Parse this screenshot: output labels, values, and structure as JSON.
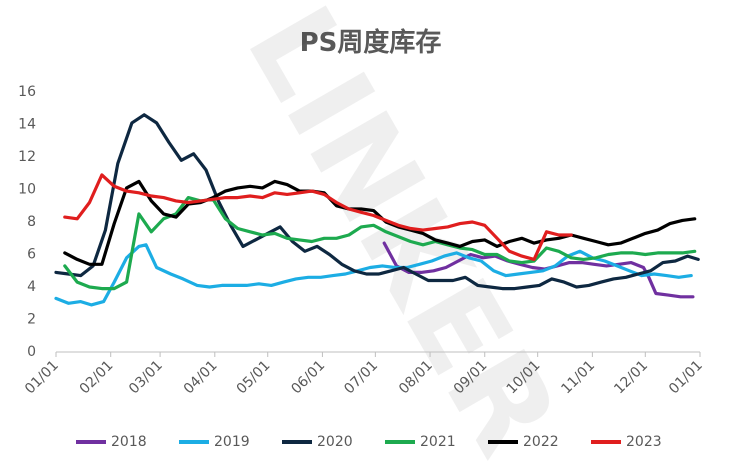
{
  "chart_data": {
    "type": "line",
    "title": "PS周度库存",
    "watermark": "LINKER",
    "xlabel": "",
    "ylabel": "",
    "ylim": [
      0,
      16
    ],
    "yticks": [
      0,
      2,
      4,
      6,
      8,
      10,
      12,
      14,
      16
    ],
    "xlim": [
      0,
      365
    ],
    "xticks": [
      {
        "label": "01/01",
        "day": 0
      },
      {
        "label": "02/01",
        "day": 31
      },
      {
        "label": "03/01",
        "day": 59
      },
      {
        "label": "04/01",
        "day": 90
      },
      {
        "label": "05/01",
        "day": 120
      },
      {
        "label": "06/01",
        "day": 151
      },
      {
        "label": "07/01",
        "day": 181
      },
      {
        "label": "08/01",
        "day": 212
      },
      {
        "label": "09/01",
        "day": 243
      },
      {
        "label": "10/01",
        "day": 273
      },
      {
        "label": "11/01",
        "day": 304
      },
      {
        "label": "12/01",
        "day": 334
      },
      {
        "label": "01/01",
        "day": 365
      }
    ],
    "grid": false,
    "legend": "bottom",
    "series": [
      {
        "name": "2018",
        "color": "#7030A0",
        "points": [
          [
            186,
            6.7
          ],
          [
            193,
            5.3
          ],
          [
            200,
            4.9
          ],
          [
            207,
            4.9
          ],
          [
            214,
            5.0
          ],
          [
            221,
            5.2
          ],
          [
            228,
            5.6
          ],
          [
            235,
            6.0
          ],
          [
            242,
            5.8
          ],
          [
            249,
            5.9
          ],
          [
            256,
            5.6
          ],
          [
            263,
            5.4
          ],
          [
            270,
            5.2
          ],
          [
            277,
            5.1
          ],
          [
            284,
            5.3
          ],
          [
            291,
            5.5
          ],
          [
            298,
            5.5
          ],
          [
            305,
            5.4
          ],
          [
            312,
            5.3
          ],
          [
            319,
            5.4
          ],
          [
            326,
            5.5
          ],
          [
            333,
            5.2
          ],
          [
            336,
            4.6
          ],
          [
            340,
            3.6
          ],
          [
            347,
            3.5
          ],
          [
            354,
            3.4
          ],
          [
            361,
            3.4
          ]
        ]
      },
      {
        "name": "2019",
        "color": "#1CADE4",
        "points": [
          [
            0,
            3.3
          ],
          [
            7,
            3.0
          ],
          [
            14,
            3.1
          ],
          [
            20,
            2.9
          ],
          [
            27,
            3.1
          ],
          [
            33,
            4.3
          ],
          [
            40,
            5.8
          ],
          [
            47,
            6.5
          ],
          [
            51,
            6.6
          ],
          [
            57,
            5.2
          ],
          [
            65,
            4.8
          ],
          [
            72,
            4.5
          ],
          [
            80,
            4.1
          ],
          [
            87,
            4.0
          ],
          [
            94,
            4.1
          ],
          [
            101,
            4.1
          ],
          [
            108,
            4.1
          ],
          [
            115,
            4.2
          ],
          [
            122,
            4.1
          ],
          [
            129,
            4.3
          ],
          [
            136,
            4.5
          ],
          [
            143,
            4.6
          ],
          [
            150,
            4.6
          ],
          [
            157,
            4.7
          ],
          [
            164,
            4.8
          ],
          [
            171,
            5.0
          ],
          [
            178,
            5.2
          ],
          [
            185,
            5.3
          ],
          [
            192,
            5.2
          ],
          [
            199,
            5.2
          ],
          [
            206,
            5.4
          ],
          [
            213,
            5.6
          ],
          [
            220,
            5.9
          ],
          [
            227,
            6.1
          ],
          [
            234,
            5.8
          ],
          [
            241,
            5.6
          ],
          [
            248,
            5.0
          ],
          [
            255,
            4.7
          ],
          [
            262,
            4.8
          ],
          [
            269,
            4.9
          ],
          [
            276,
            5.0
          ],
          [
            283,
            5.3
          ],
          [
            290,
            5.9
          ],
          [
            297,
            6.2
          ],
          [
            304,
            5.8
          ],
          [
            311,
            5.6
          ],
          [
            318,
            5.3
          ],
          [
            325,
            5.0
          ],
          [
            332,
            4.7
          ],
          [
            339,
            4.8
          ],
          [
            346,
            4.7
          ],
          [
            353,
            4.6
          ],
          [
            360,
            4.7
          ]
        ]
      },
      {
        "name": "2020",
        "color": "#0E2841",
        "points": [
          [
            0,
            4.9
          ],
          [
            7,
            4.8
          ],
          [
            14,
            4.7
          ],
          [
            21,
            5.3
          ],
          [
            28,
            7.5
          ],
          [
            35,
            11.6
          ],
          [
            43,
            14.1
          ],
          [
            50,
            14.6
          ],
          [
            57,
            14.1
          ],
          [
            64,
            12.9
          ],
          [
            71,
            11.8
          ],
          [
            78,
            12.2
          ],
          [
            85,
            11.2
          ],
          [
            92,
            9.3
          ],
          [
            99,
            7.8
          ],
          [
            106,
            6.5
          ],
          [
            113,
            6.9
          ],
          [
            120,
            7.3
          ],
          [
            127,
            7.7
          ],
          [
            134,
            6.8
          ],
          [
            141,
            6.2
          ],
          [
            148,
            6.5
          ],
          [
            155,
            6.0
          ],
          [
            162,
            5.4
          ],
          [
            169,
            5.0
          ],
          [
            176,
            4.8
          ],
          [
            183,
            4.8
          ],
          [
            190,
            5.0
          ],
          [
            197,
            5.2
          ],
          [
            204,
            4.8
          ],
          [
            211,
            4.4
          ],
          [
            218,
            4.4
          ],
          [
            225,
            4.4
          ],
          [
            232,
            4.6
          ],
          [
            239,
            4.1
          ],
          [
            246,
            4.0
          ],
          [
            253,
            3.9
          ],
          [
            260,
            3.9
          ],
          [
            267,
            4.0
          ],
          [
            274,
            4.1
          ],
          [
            281,
            4.5
          ],
          [
            288,
            4.3
          ],
          [
            295,
            4.0
          ],
          [
            302,
            4.1
          ],
          [
            309,
            4.3
          ],
          [
            316,
            4.5
          ],
          [
            323,
            4.6
          ],
          [
            330,
            4.8
          ],
          [
            337,
            5.0
          ],
          [
            344,
            5.5
          ],
          [
            351,
            5.6
          ],
          [
            358,
            5.9
          ],
          [
            364,
            5.7
          ]
        ]
      },
      {
        "name": "2021",
        "color": "#1DAA4F",
        "points": [
          [
            5,
            5.3
          ],
          [
            12,
            4.3
          ],
          [
            19,
            4.0
          ],
          [
            26,
            3.9
          ],
          [
            33,
            3.9
          ],
          [
            40,
            4.3
          ],
          [
            47,
            8.5
          ],
          [
            54,
            7.4
          ],
          [
            61,
            8.2
          ],
          [
            68,
            8.5
          ],
          [
            75,
            9.5
          ],
          [
            82,
            9.3
          ],
          [
            89,
            9.4
          ],
          [
            96,
            8.2
          ],
          [
            103,
            7.6
          ],
          [
            110,
            7.4
          ],
          [
            117,
            7.2
          ],
          [
            124,
            7.3
          ],
          [
            131,
            7.0
          ],
          [
            138,
            6.9
          ],
          [
            145,
            6.8
          ],
          [
            152,
            7.0
          ],
          [
            159,
            7.0
          ],
          [
            166,
            7.2
          ],
          [
            173,
            7.7
          ],
          [
            180,
            7.8
          ],
          [
            187,
            7.4
          ],
          [
            194,
            7.1
          ],
          [
            201,
            6.8
          ],
          [
            208,
            6.6
          ],
          [
            215,
            6.8
          ],
          [
            222,
            6.6
          ],
          [
            229,
            6.4
          ],
          [
            236,
            6.3
          ],
          [
            243,
            6.0
          ],
          [
            250,
            6.0
          ],
          [
            257,
            5.6
          ],
          [
            264,
            5.5
          ],
          [
            271,
            5.6
          ],
          [
            278,
            6.4
          ],
          [
            285,
            6.2
          ],
          [
            292,
            5.8
          ],
          [
            299,
            5.7
          ],
          [
            306,
            5.8
          ],
          [
            313,
            6.0
          ],
          [
            320,
            6.1
          ],
          [
            327,
            6.1
          ],
          [
            334,
            6.0
          ],
          [
            341,
            6.1
          ],
          [
            348,
            6.1
          ],
          [
            355,
            6.1
          ],
          [
            362,
            6.2
          ]
        ]
      },
      {
        "name": "2022",
        "color": "#000000",
        "points": [
          [
            5,
            6.1
          ],
          [
            12,
            5.7
          ],
          [
            19,
            5.4
          ],
          [
            26,
            5.4
          ],
          [
            33,
            7.9
          ],
          [
            40,
            10.1
          ],
          [
            47,
            10.5
          ],
          [
            54,
            9.3
          ],
          [
            61,
            8.5
          ],
          [
            68,
            8.3
          ],
          [
            75,
            9.1
          ],
          [
            82,
            9.2
          ],
          [
            89,
            9.5
          ],
          [
            96,
            9.9
          ],
          [
            103,
            10.1
          ],
          [
            110,
            10.2
          ],
          [
            117,
            10.1
          ],
          [
            124,
            10.5
          ],
          [
            131,
            10.3
          ],
          [
            138,
            9.9
          ],
          [
            145,
            9.9
          ],
          [
            152,
            9.8
          ],
          [
            159,
            9.0
          ],
          [
            166,
            8.8
          ],
          [
            173,
            8.8
          ],
          [
            180,
            8.7
          ],
          [
            187,
            8.0
          ],
          [
            194,
            7.7
          ],
          [
            201,
            7.5
          ],
          [
            208,
            7.3
          ],
          [
            215,
            6.9
          ],
          [
            222,
            6.7
          ],
          [
            229,
            6.5
          ],
          [
            236,
            6.8
          ],
          [
            243,
            6.9
          ],
          [
            250,
            6.5
          ],
          [
            257,
            6.8
          ],
          [
            264,
            7.0
          ],
          [
            271,
            6.7
          ],
          [
            278,
            6.9
          ],
          [
            285,
            7.0
          ],
          [
            292,
            7.2
          ],
          [
            299,
            7.0
          ],
          [
            306,
            6.8
          ],
          [
            313,
            6.6
          ],
          [
            320,
            6.7
          ],
          [
            327,
            7.0
          ],
          [
            334,
            7.3
          ],
          [
            341,
            7.5
          ],
          [
            348,
            7.9
          ],
          [
            355,
            8.1
          ],
          [
            362,
            8.2
          ]
        ]
      },
      {
        "name": "2023",
        "color": "#E01E1E",
        "points": [
          [
            5,
            8.3
          ],
          [
            12,
            8.2
          ],
          [
            19,
            9.2
          ],
          [
            26,
            10.9
          ],
          [
            33,
            10.2
          ],
          [
            40,
            9.9
          ],
          [
            47,
            9.8
          ],
          [
            54,
            9.6
          ],
          [
            61,
            9.5
          ],
          [
            68,
            9.3
          ],
          [
            75,
            9.2
          ],
          [
            82,
            9.3
          ],
          [
            89,
            9.4
          ],
          [
            96,
            9.5
          ],
          [
            103,
            9.5
          ],
          [
            110,
            9.6
          ],
          [
            117,
            9.5
          ],
          [
            124,
            9.8
          ],
          [
            131,
            9.7
          ],
          [
            138,
            9.8
          ],
          [
            145,
            9.9
          ],
          [
            152,
            9.7
          ],
          [
            159,
            9.2
          ],
          [
            166,
            8.8
          ],
          [
            173,
            8.6
          ],
          [
            180,
            8.4
          ],
          [
            187,
            8.1
          ],
          [
            194,
            7.8
          ],
          [
            201,
            7.6
          ],
          [
            208,
            7.5
          ],
          [
            215,
            7.6
          ],
          [
            222,
            7.7
          ],
          [
            229,
            7.9
          ],
          [
            236,
            8.0
          ],
          [
            243,
            7.8
          ],
          [
            250,
            7.0
          ],
          [
            257,
            6.2
          ],
          [
            264,
            5.9
          ],
          [
            271,
            5.7
          ],
          [
            278,
            7.4
          ],
          [
            285,
            7.2
          ],
          [
            292,
            7.2
          ]
        ]
      }
    ]
  }
}
